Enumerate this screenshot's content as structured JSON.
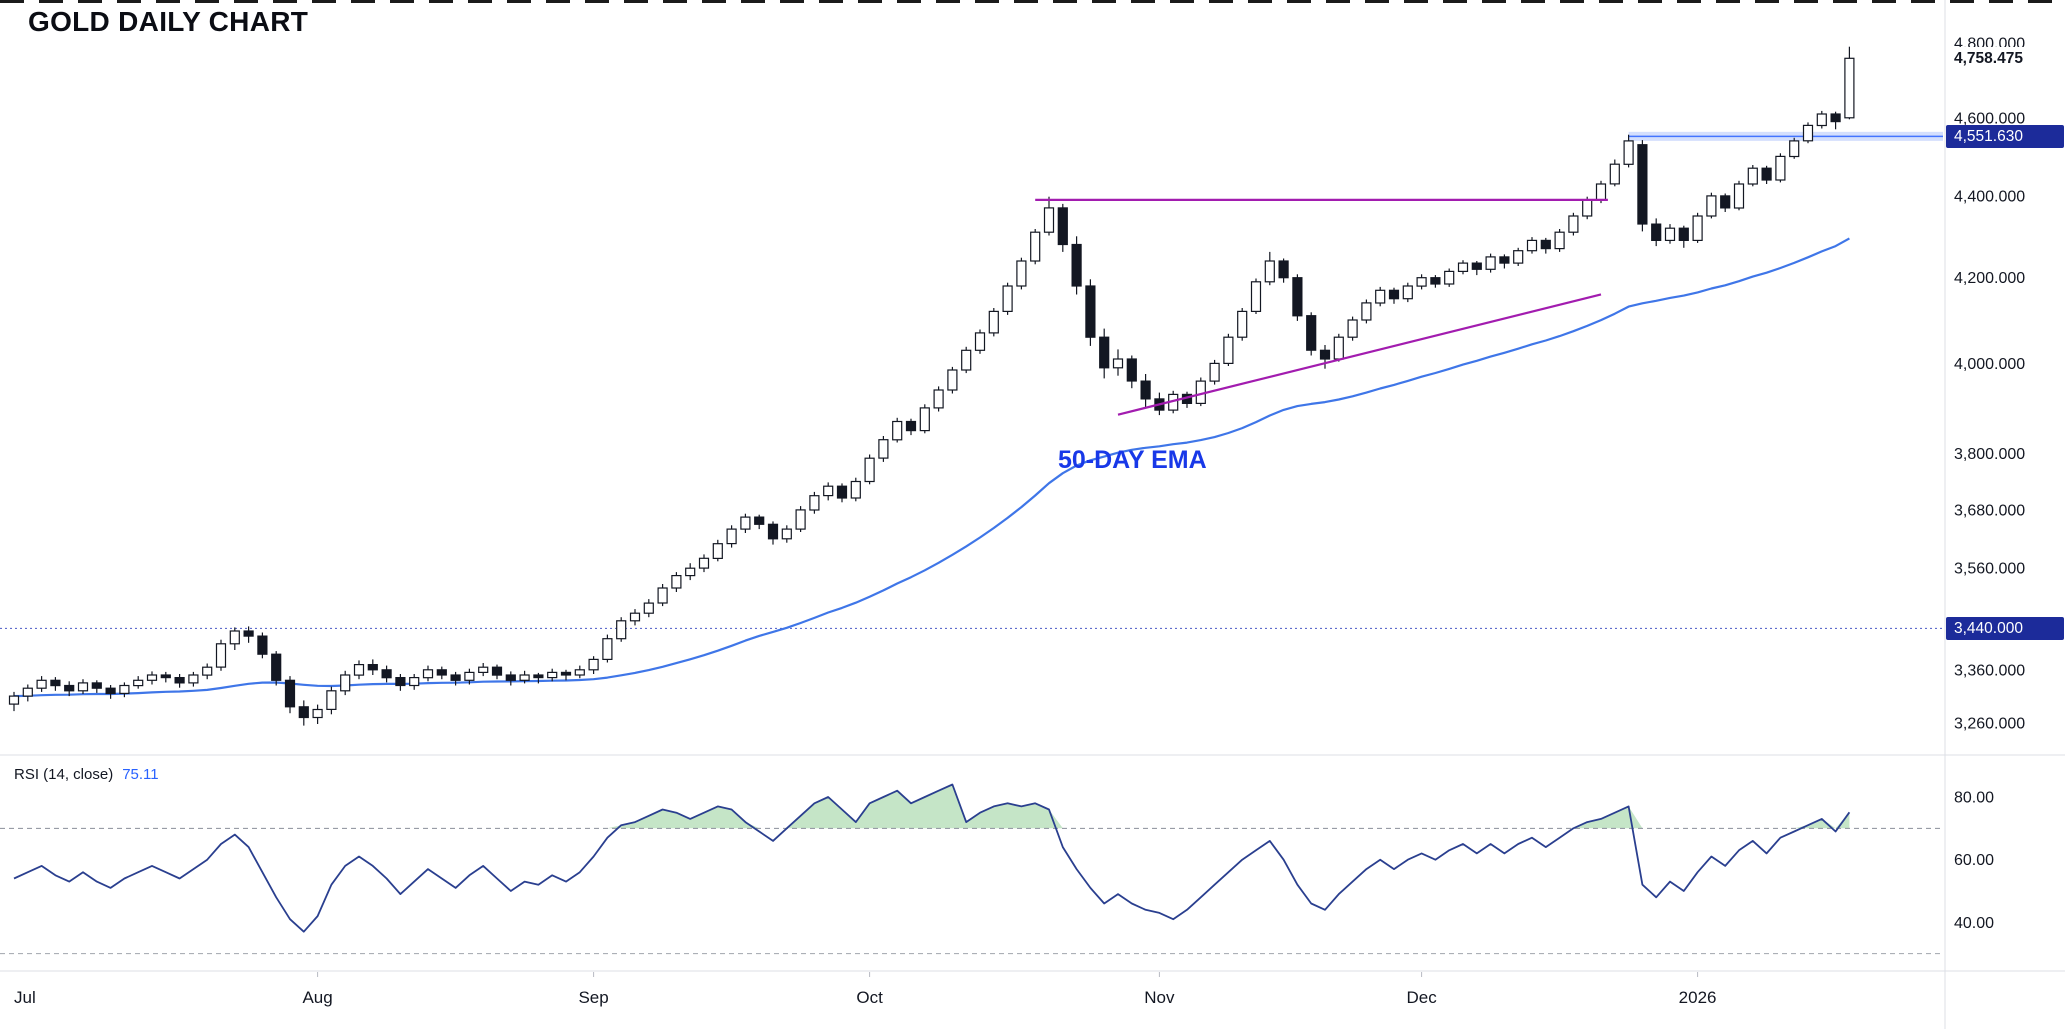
{
  "title": "GOLD DAILY CHART",
  "colors": {
    "up_candle": "#ffffff",
    "down_candle": "#131722",
    "candle_border": "#131722",
    "ema": "#3f76e8",
    "trendline": "#a21caf",
    "band_fill": "rgba(59,110,245,0.22)",
    "band_line": "rgba(41,98,255,0.85)",
    "dotted_level": "#2a3bbd",
    "rsi_line": "#2a3f8f",
    "rsi_fill": "rgba(76,175,80,0.32)",
    "level_dash": "#8a8e99",
    "axis_text": "#131722",
    "separator": "#dcdfe6",
    "badge_bg": "#1c2b9a"
  },
  "chart_data": {
    "type": "candlestick",
    "price_scale": "log",
    "grid": "off",
    "title": "GOLD DAILY CHART",
    "price_range": [
      3255,
      4800
    ],
    "x_months": [
      {
        "label": "Jul",
        "index": 0
      },
      {
        "label": "Aug",
        "index": 22
      },
      {
        "label": "Sep",
        "index": 42
      },
      {
        "label": "Oct",
        "index": 62
      },
      {
        "label": "Nov",
        "index": 83
      },
      {
        "label": "Dec",
        "index": 102
      },
      {
        "label": "2026",
        "index": 122
      }
    ],
    "price_ticks": [
      {
        "label": "4,800.000",
        "value": 4800
      },
      {
        "label": "4,600.000",
        "value": 4600
      },
      {
        "label": "4,400.000",
        "value": 4400
      },
      {
        "label": "4,200.000",
        "value": 4200
      },
      {
        "label": "4,000.000",
        "value": 4000
      },
      {
        "label": "3,800.000",
        "value": 3800
      },
      {
        "label": "3,680.000",
        "value": 3680
      },
      {
        "label": "3,560.000",
        "value": 3560
      },
      {
        "label": "3,440.000",
        "value": 3440
      },
      {
        "label": "3,360.000",
        "value": 3360
      },
      {
        "label": "3,260.000",
        "value": 3260
      }
    ],
    "candles": [
      [
        3295,
        3318,
        3282,
        3310
      ],
      [
        3310,
        3332,
        3300,
        3325
      ],
      [
        3325,
        3348,
        3318,
        3340
      ],
      [
        3340,
        3346,
        3320,
        3330
      ],
      [
        3330,
        3338,
        3310,
        3320
      ],
      [
        3320,
        3342,
        3314,
        3335
      ],
      [
        3335,
        3340,
        3316,
        3325
      ],
      [
        3325,
        3331,
        3305,
        3315
      ],
      [
        3315,
        3336,
        3308,
        3330
      ],
      [
        3330,
        3348,
        3324,
        3340
      ],
      [
        3340,
        3357,
        3332,
        3350
      ],
      [
        3350,
        3356,
        3336,
        3345
      ],
      [
        3345,
        3352,
        3326,
        3335
      ],
      [
        3335,
        3356,
        3328,
        3350
      ],
      [
        3350,
        3372,
        3342,
        3365
      ],
      [
        3365,
        3418,
        3358,
        3410
      ],
      [
        3410,
        3442,
        3398,
        3435
      ],
      [
        3435,
        3444,
        3412,
        3425
      ],
      [
        3425,
        3432,
        3382,
        3390
      ],
      [
        3390,
        3396,
        3330,
        3340
      ],
      [
        3340,
        3348,
        3278,
        3290
      ],
      [
        3290,
        3302,
        3255,
        3270
      ],
      [
        3270,
        3294,
        3258,
        3285
      ],
      [
        3285,
        3328,
        3276,
        3320
      ],
      [
        3320,
        3358,
        3312,
        3350
      ],
      [
        3350,
        3378,
        3342,
        3370
      ],
      [
        3370,
        3380,
        3350,
        3360
      ],
      [
        3360,
        3368,
        3336,
        3345
      ],
      [
        3345,
        3352,
        3320,
        3330
      ],
      [
        3330,
        3352,
        3322,
        3345
      ],
      [
        3345,
        3368,
        3338,
        3360
      ],
      [
        3360,
        3366,
        3342,
        3350
      ],
      [
        3350,
        3356,
        3330,
        3340
      ],
      [
        3340,
        3362,
        3332,
        3355
      ],
      [
        3355,
        3373,
        3348,
        3365
      ],
      [
        3365,
        3370,
        3342,
        3350
      ],
      [
        3350,
        3357,
        3330,
        3340
      ],
      [
        3340,
        3358,
        3334,
        3350
      ],
      [
        3350,
        3354,
        3334,
        3345
      ],
      [
        3345,
        3362,
        3338,
        3355
      ],
      [
        3355,
        3360,
        3340,
        3350
      ],
      [
        3350,
        3368,
        3344,
        3360
      ],
      [
        3360,
        3386,
        3352,
        3380
      ],
      [
        3380,
        3428,
        3374,
        3420
      ],
      [
        3420,
        3462,
        3414,
        3455
      ],
      [
        3455,
        3478,
        3446,
        3470
      ],
      [
        3470,
        3498,
        3462,
        3490
      ],
      [
        3490,
        3528,
        3484,
        3520
      ],
      [
        3520,
        3552,
        3512,
        3545
      ],
      [
        3545,
        3570,
        3536,
        3560
      ],
      [
        3560,
        3588,
        3552,
        3580
      ],
      [
        3580,
        3618,
        3574,
        3610
      ],
      [
        3610,
        3648,
        3602,
        3640
      ],
      [
        3640,
        3672,
        3632,
        3665
      ],
      [
        3665,
        3670,
        3640,
        3650
      ],
      [
        3650,
        3656,
        3608,
        3620
      ],
      [
        3620,
        3648,
        3612,
        3640
      ],
      [
        3640,
        3688,
        3634,
        3680
      ],
      [
        3680,
        3718,
        3672,
        3710
      ],
      [
        3710,
        3738,
        3700,
        3730
      ],
      [
        3730,
        3736,
        3696,
        3705
      ],
      [
        3705,
        3748,
        3698,
        3740
      ],
      [
        3740,
        3798,
        3734,
        3790
      ],
      [
        3790,
        3838,
        3782,
        3830
      ],
      [
        3830,
        3878,
        3824,
        3870
      ],
      [
        3870,
        3876,
        3840,
        3850
      ],
      [
        3850,
        3908,
        3844,
        3900
      ],
      [
        3900,
        3948,
        3892,
        3940
      ],
      [
        3940,
        3992,
        3932,
        3985
      ],
      [
        3985,
        4038,
        3978,
        4030
      ],
      [
        4030,
        4078,
        4022,
        4070
      ],
      [
        4070,
        4128,
        4062,
        4120
      ],
      [
        4120,
        4188,
        4112,
        4180
      ],
      [
        4180,
        4248,
        4172,
        4240
      ],
      [
        4240,
        4318,
        4232,
        4310
      ],
      [
        4310,
        4398,
        4302,
        4370
      ],
      [
        4370,
        4380,
        4262,
        4280
      ],
      [
        4280,
        4300,
        4160,
        4180
      ],
      [
        4180,
        4196,
        4040,
        4060
      ],
      [
        4060,
        4080,
        3966,
        3990
      ],
      [
        3990,
        4032,
        3972,
        4010
      ],
      [
        4010,
        4018,
        3944,
        3960
      ],
      [
        3960,
        3976,
        3902,
        3920
      ],
      [
        3920,
        3934,
        3884,
        3895
      ],
      [
        3895,
        3938,
        3888,
        3930
      ],
      [
        3930,
        3936,
        3900,
        3910
      ],
      [
        3910,
        3968,
        3904,
        3960
      ],
      [
        3960,
        4008,
        3952,
        4000
      ],
      [
        4000,
        4068,
        3994,
        4060
      ],
      [
        4060,
        4128,
        4052,
        4120
      ],
      [
        4120,
        4198,
        4114,
        4190
      ],
      [
        4190,
        4262,
        4182,
        4240
      ],
      [
        4240,
        4246,
        4188,
        4200
      ],
      [
        4200,
        4208,
        4098,
        4110
      ],
      [
        4110,
        4118,
        4018,
        4030
      ],
      [
        4030,
        4042,
        3988,
        4010
      ],
      [
        4010,
        4068,
        4004,
        4060
      ],
      [
        4060,
        4108,
        4052,
        4100
      ],
      [
        4100,
        4148,
        4092,
        4140
      ],
      [
        4140,
        4178,
        4132,
        4170
      ],
      [
        4170,
        4176,
        4138,
        4150
      ],
      [
        4150,
        4188,
        4142,
        4180
      ],
      [
        4180,
        4208,
        4172,
        4200
      ],
      [
        4200,
        4206,
        4176,
        4185
      ],
      [
        4185,
        4222,
        4178,
        4215
      ],
      [
        4215,
        4242,
        4208,
        4235
      ],
      [
        4235,
        4240,
        4206,
        4220
      ],
      [
        4220,
        4258,
        4212,
        4250
      ],
      [
        4250,
        4256,
        4222,
        4235
      ],
      [
        4235,
        4272,
        4228,
        4265
      ],
      [
        4265,
        4298,
        4258,
        4290
      ],
      [
        4290,
        4296,
        4258,
        4270
      ],
      [
        4270,
        4318,
        4262,
        4310
      ],
      [
        4310,
        4358,
        4302,
        4350
      ],
      [
        4350,
        4398,
        4342,
        4390
      ],
      [
        4390,
        4438,
        4382,
        4430
      ],
      [
        4430,
        4492,
        4424,
        4480
      ],
      [
        4480,
        4556,
        4472,
        4540
      ],
      [
        4530,
        4542,
        4312,
        4330
      ],
      [
        4330,
        4344,
        4276,
        4290
      ],
      [
        4290,
        4330,
        4282,
        4320
      ],
      [
        4320,
        4326,
        4272,
        4290
      ],
      [
        4290,
        4358,
        4284,
        4350
      ],
      [
        4350,
        4408,
        4344,
        4400
      ],
      [
        4400,
        4406,
        4360,
        4370
      ],
      [
        4370,
        4438,
        4364,
        4430
      ],
      [
        4430,
        4478,
        4424,
        4470
      ],
      [
        4470,
        4476,
        4430,
        4440
      ],
      [
        4440,
        4508,
        4434,
        4500
      ],
      [
        4500,
        4548,
        4494,
        4540
      ],
      [
        4540,
        4588,
        4534,
        4580
      ],
      [
        4580,
        4618,
        4572,
        4610
      ],
      [
        4610,
        4616,
        4570,
        4590
      ],
      [
        4600,
        4790,
        4596,
        4758.475
      ]
    ],
    "ema": {
      "label": "50-DAY EMA",
      "period": 50
    },
    "rsi": {
      "label": "RSI (14, close)",
      "current_value": "75.11",
      "overbought": 70,
      "oversold": 30,
      "range": [
        25,
        92
      ],
      "ticks": [
        {
          "label": "80.00",
          "value": 80
        },
        {
          "label": "60.00",
          "value": 60
        },
        {
          "label": "40.00",
          "value": 40
        }
      ],
      "values": [
        54,
        56,
        58,
        55,
        53,
        56,
        53,
        51,
        54,
        56,
        58,
        56,
        54,
        57,
        60,
        65,
        68,
        64,
        56,
        48,
        41,
        37,
        42,
        52,
        58,
        61,
        58,
        54,
        49,
        53,
        57,
        54,
        51,
        55,
        58,
        54,
        50,
        53,
        52,
        55,
        53,
        56,
        61,
        67,
        71,
        72,
        74,
        76,
        75,
        73,
        75,
        77,
        76,
        72,
        69,
        66,
        70,
        74,
        78,
        80,
        76,
        72,
        78,
        80,
        82,
        78,
        80,
        82,
        84,
        72,
        75,
        77,
        78,
        77,
        78,
        76,
        64,
        57,
        51,
        46,
        49,
        46,
        44,
        43,
        41,
        44,
        48,
        52,
        56,
        60,
        63,
        66,
        60,
        52,
        46,
        44,
        49,
        53,
        57,
        60,
        57,
        60,
        62,
        60,
        63,
        65,
        62,
        65,
        62,
        65,
        67,
        64,
        67,
        70,
        72,
        73,
        75,
        77,
        52,
        48,
        53,
        50,
        56,
        61,
        58,
        63,
        66,
        62,
        67,
        69,
        71,
        73,
        69,
        75.11
      ]
    },
    "annotations": {
      "resistance_line": {
        "type": "horizontal",
        "price": 4390,
        "from_index": 74,
        "to_index": 115.5
      },
      "ascending_trendline": {
        "from": {
          "index": 80,
          "price": 3885
        },
        "to": {
          "index": 115,
          "price": 4160
        }
      },
      "highlight_band": {
        "price": 4551.63,
        "from_index": 117,
        "label": "4,551.630"
      },
      "dotted_level": {
        "price": 3440,
        "label": "3,440.000"
      },
      "last_price": {
        "value": 4758.475,
        "label": "4,758.475"
      }
    }
  }
}
